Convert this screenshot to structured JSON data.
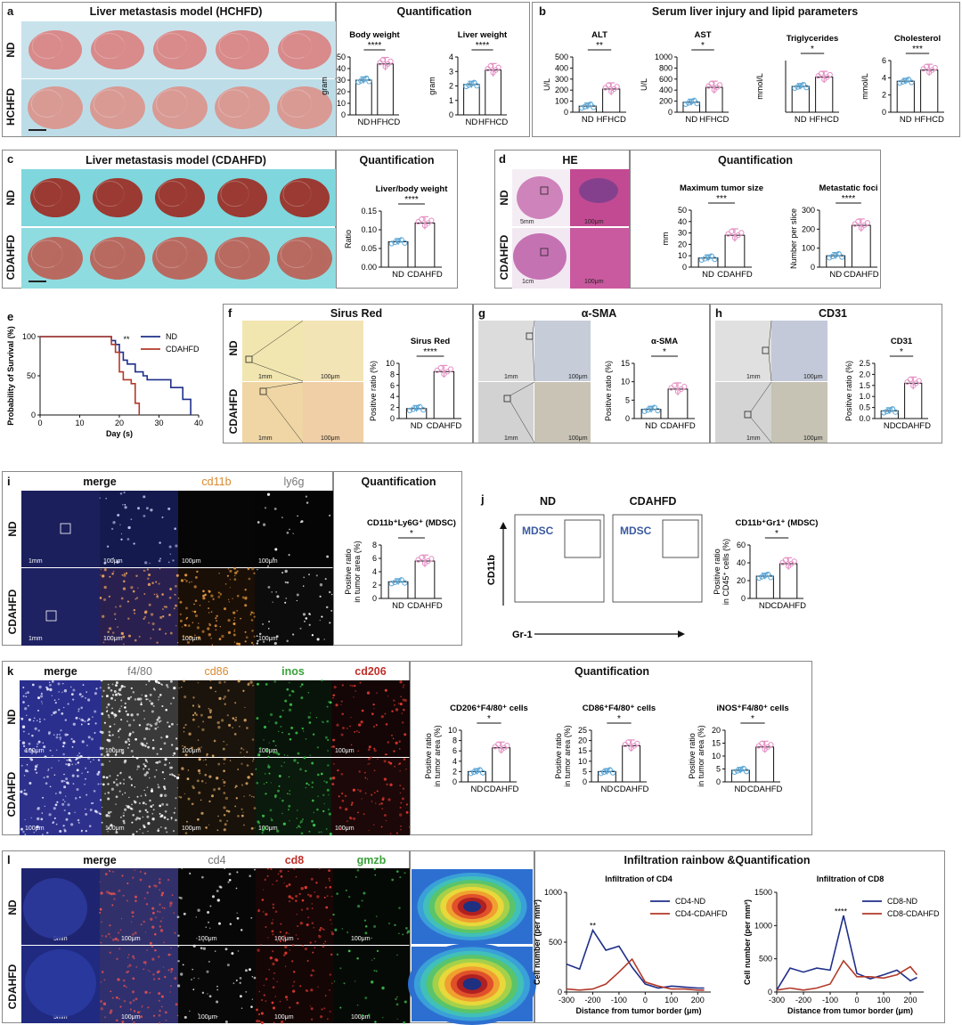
{
  "colors": {
    "nd": "#5aa6d6",
    "hf": "#e58fc4",
    "bar": "#ffffff",
    "nd_line": "#1f2f8a",
    "cd_line": "#b23a2a"
  },
  "panels": {
    "a": {
      "letter": "a",
      "title": "Liver metastasis model (HCHFD)",
      "quant": "Quantification",
      "rows": [
        "ND",
        "HCHFD"
      ]
    },
    "b": {
      "letter": "b",
      "title": "Serum liver injury and lipid parameters"
    },
    "c": {
      "letter": "c",
      "title": "Liver metastasis model (CDAHFD)",
      "quant": "Quantification",
      "rows": [
        "ND",
        "CDAHFD"
      ]
    },
    "d": {
      "letter": "d",
      "title": "HE",
      "quant": "Quantification",
      "rows": [
        "ND",
        "CDAHFD"
      ],
      "scale": [
        "5mm",
        "100μm",
        "1cm",
        "100μm"
      ]
    },
    "e": {
      "letter": "e"
    },
    "f": {
      "letter": "f",
      "title": "Sirus Red",
      "rows": [
        "ND",
        "CDAHFD"
      ],
      "scale": [
        "1mm",
        "100μm",
        "1mm",
        "100μm"
      ]
    },
    "g": {
      "letter": "g",
      "title": "α-SMA",
      "scale": [
        "1mm",
        "100μm",
        "1mm",
        "100μm"
      ]
    },
    "h": {
      "letter": "h",
      "title": "CD31",
      "scale": [
        "1mm",
        "100μm",
        "1mm",
        "100μm"
      ]
    },
    "i": {
      "letter": "i",
      "cols": [
        "merge",
        "cd11b",
        "ly6g"
      ],
      "quant": "Quantification",
      "rows": [
        "ND",
        "CDAHFD"
      ],
      "scale": [
        "1mm",
        "100μm",
        "100μm",
        "100μm"
      ]
    },
    "j": {
      "letter": "j",
      "cols": [
        "ND",
        "CDAHFD"
      ],
      "gate": "MDSC",
      "yaxis": "CD11b",
      "xaxis": "Gr-1"
    },
    "k": {
      "letter": "k",
      "cols": [
        "merge",
        "f4/80",
        "cd86",
        "inos",
        "cd206"
      ],
      "quant": "Quantification",
      "rows": [
        "ND",
        "CDAHFD"
      ],
      "scale": "100μm"
    },
    "l": {
      "letter": "l",
      "cols": [
        "merge",
        "cd4",
        "cd8",
        "gmzb"
      ],
      "quant": "Infiltration rainbow &Quantification",
      "rows": [
        "ND",
        "CDAHFD"
      ],
      "scale": [
        "5mm",
        "100μm"
      ]
    }
  },
  "chart_data": [
    {
      "id": "a1",
      "type": "bar",
      "title": "Body weight",
      "categories": [
        "ND",
        "HFHCD"
      ],
      "values": [
        30,
        44
      ],
      "ylabel": "gram",
      "ylim": [
        0,
        50
      ],
      "yticks": [
        "0",
        "10",
        "20",
        "30",
        "40",
        "50"
      ],
      "sig": "****"
    },
    {
      "id": "a2",
      "type": "bar",
      "title": "Liver weight",
      "categories": [
        "ND",
        "HFHCD"
      ],
      "values": [
        2.1,
        3.1
      ],
      "ylabel": "gram",
      "ylim": [
        0,
        4
      ],
      "yticks": [
        "0",
        "1",
        "2",
        "3",
        "4"
      ],
      "sig": "****"
    },
    {
      "id": "b1",
      "type": "bar",
      "title": "ALT",
      "categories": [
        "ND",
        "HFHCD"
      ],
      "values": [
        55,
        210
      ],
      "ylabel": "U/L",
      "ylim": [
        0,
        500
      ],
      "yticks": [
        "0",
        "100",
        "200",
        "300",
        "400",
        "500"
      ],
      "sig": "**"
    },
    {
      "id": "b2",
      "type": "bar",
      "title": "AST",
      "categories": [
        "ND",
        "HFHCD"
      ],
      "values": [
        180,
        450
      ],
      "ylabel": "U/L",
      "ylim": [
        0,
        1000
      ],
      "yticks": [
        "0",
        "200",
        "400",
        "600",
        "800",
        "1000"
      ],
      "sig": "*"
    },
    {
      "id": "b3",
      "type": "bar",
      "title": "Triglycerides",
      "categories": [
        "ND",
        "HFHCD"
      ],
      "values": [
        1.25,
        1.7
      ],
      "ylabel": "mmol/L",
      "ylim": [
        0,
        2.5
      ],
      "yticks": [],
      "sig": "*"
    },
    {
      "id": "b4",
      "type": "bar",
      "title": "Cholesterol",
      "categories": [
        "ND",
        "HFHCD"
      ],
      "values": [
        3.6,
        4.9
      ],
      "ylabel": "mmol/L",
      "ylim": [
        0,
        6
      ],
      "yticks": [
        "0",
        "2",
        "4",
        "6"
      ],
      "sig": "***"
    },
    {
      "id": "c1",
      "type": "bar",
      "title": "Liver/body weight",
      "categories": [
        "ND",
        "CDAHFD"
      ],
      "values": [
        0.068,
        0.118
      ],
      "ylabel": "Ratio",
      "ylim": [
        0,
        0.15
      ],
      "yticks": [
        "0.00",
        "0.05",
        "0.10",
        "0.15"
      ],
      "sig": "****"
    },
    {
      "id": "d1",
      "type": "bar",
      "title": "Maximum tumor size",
      "categories": [
        "ND",
        "CDAHFD"
      ],
      "values": [
        8,
        28
      ],
      "ylabel": "mm",
      "ylim": [
        0,
        50
      ],
      "yticks": [
        "0",
        "10",
        "20",
        "30",
        "40",
        "50"
      ],
      "sig": "***"
    },
    {
      "id": "d2",
      "type": "bar",
      "title": "Metastatic foci",
      "categories": [
        "ND",
        "CDAHFD"
      ],
      "values": [
        60,
        220
      ],
      "ylabel": "Number per slice",
      "ylim": [
        0,
        300
      ],
      "yticks": [
        "0",
        "100",
        "200",
        "300"
      ],
      "sig": "****"
    },
    {
      "id": "e1",
      "type": "line",
      "title": "",
      "xlabel": "Day (s)",
      "ylabel": "Probability of Survival (%)",
      "xlim": [
        0,
        40
      ],
      "ylim": [
        0,
        100
      ],
      "xticks": [
        "0",
        "10",
        "20",
        "30",
        "40"
      ],
      "yticks": [
        "0",
        "50",
        "100"
      ],
      "sig": "**",
      "series": [
        {
          "name": "ND",
          "x": [
            0,
            17,
            18,
            19,
            20,
            21,
            22,
            24,
            26,
            27,
            31,
            33,
            36,
            38,
            38
          ],
          "y": [
            100,
            100,
            95,
            90,
            80,
            70,
            65,
            55,
            50,
            45,
            45,
            35,
            20,
            20,
            0
          ]
        },
        {
          "name": "CDAHFD",
          "x": [
            0,
            17,
            18,
            19,
            20,
            21,
            23,
            24,
            25
          ],
          "y": [
            100,
            100,
            90,
            80,
            55,
            45,
            40,
            15,
            0
          ]
        }
      ]
    },
    {
      "id": "f1",
      "type": "bar",
      "title": "Sirus Red",
      "categories": [
        "ND",
        "CDAHFD"
      ],
      "values": [
        1.8,
        8.5
      ],
      "ylabel": "Positive ratio (%)",
      "ylim": [
        0,
        10
      ],
      "yticks": [
        "0",
        "2",
        "4",
        "6",
        "8",
        "10"
      ],
      "sig": "****"
    },
    {
      "id": "g1",
      "type": "bar",
      "title": "α-SMA",
      "categories": [
        "ND",
        "CDAHFD"
      ],
      "values": [
        2.5,
        8
      ],
      "ylabel": "Positive ratio (%)",
      "ylim": [
        0,
        15
      ],
      "yticks": [
        "0",
        "5",
        "10",
        "15"
      ],
      "sig": "*"
    },
    {
      "id": "h1",
      "type": "bar",
      "title": "CD31",
      "categories": [
        "ND",
        "CDAHFD"
      ],
      "values": [
        0.35,
        1.6
      ],
      "ylabel": "Positive ratio (%)",
      "ylim": [
        0,
        2.5
      ],
      "yticks": [
        "0.0",
        "0.5",
        "1.0",
        "1.5",
        "2.0",
        "2.5"
      ],
      "sig": "*"
    },
    {
      "id": "i1",
      "type": "bar",
      "title": "CD11b⁺Ly6G⁺ (MDSC)",
      "categories": [
        "ND",
        "CDAHFD"
      ],
      "values": [
        2.5,
        5.6
      ],
      "ylabel": "Positive ratio in tumor area (%)",
      "ylim": [
        0,
        8
      ],
      "yticks": [
        "0",
        "2",
        "4",
        "6",
        "8"
      ],
      "sig": "*"
    },
    {
      "id": "j1",
      "type": "bar",
      "title": "CD11b⁺Gr1⁺ (MDSC)",
      "categories": [
        "ND",
        "CDAHFD"
      ],
      "values": [
        25,
        39
      ],
      "ylabel": "Positive ratio in CD45⁺ cells (%)",
      "ylim": [
        0,
        60
      ],
      "yticks": [
        "0",
        "20",
        "40",
        "60"
      ],
      "sig": "*"
    },
    {
      "id": "k1",
      "type": "bar",
      "title": "CD206⁺F4/80⁺ cells",
      "categories": [
        "ND",
        "CDAHFD"
      ],
      "values": [
        2,
        6.6
      ],
      "ylabel": "Positive ratio in tumor area (%)",
      "ylim": [
        0,
        10
      ],
      "yticks": [
        "0",
        "2",
        "4",
        "6",
        "8",
        "10"
      ],
      "sig": "*"
    },
    {
      "id": "k2",
      "type": "bar",
      "title": "CD86⁺F4/80⁺ cells",
      "categories": [
        "ND",
        "CDAHFD"
      ],
      "values": [
        5,
        17.5
      ],
      "ylabel": "Positive ratio in tumor area (%)",
      "ylim": [
        0,
        25
      ],
      "yticks": [
        "0",
        "5",
        "10",
        "15",
        "20",
        "25"
      ],
      "sig": "*"
    },
    {
      "id": "k3",
      "type": "bar",
      "title": "iNOS⁺F4/80⁺ cells",
      "categories": [
        "ND",
        "CDAHFD"
      ],
      "values": [
        4.5,
        13.5
      ],
      "ylabel": "Positive ratio in tumor area (%)",
      "ylim": [
        0,
        20
      ],
      "yticks": [
        "0",
        "5",
        "10",
        "15",
        "20"
      ],
      "sig": "*"
    },
    {
      "id": "l1",
      "type": "line",
      "title": "Infiltration of CD4",
      "xlabel": "Distance from tumor border (μm)",
      "ylabel": "Cell number (per mm²)",
      "xlim": [
        -300,
        250
      ],
      "ylim": [
        0,
        1000
      ],
      "xticks": [
        "-300",
        "-200",
        "-100",
        "0",
        "100",
        "200"
      ],
      "yticks": [
        "0",
        "500",
        "1000"
      ],
      "sig": "**",
      "series": [
        {
          "name": "CD4-ND",
          "x": [
            -300,
            -250,
            -200,
            -150,
            -100,
            -50,
            0,
            50,
            100,
            150,
            200,
            225
          ],
          "y": [
            280,
            230,
            620,
            420,
            460,
            250,
            80,
            40,
            60,
            50,
            40,
            40
          ]
        },
        {
          "name": "CD4-CDAHFD",
          "x": [
            -300,
            -250,
            -200,
            -150,
            -100,
            -50,
            0,
            50,
            100,
            150,
            200,
            225
          ],
          "y": [
            30,
            20,
            30,
            80,
            200,
            330,
            100,
            60,
            30,
            30,
            20,
            20
          ]
        }
      ]
    },
    {
      "id": "l2",
      "type": "line",
      "title": "Infiltration of CD8",
      "xlabel": "Distance from tumor border (μm)",
      "ylabel": "Cell number (per mm²)",
      "xlim": [
        -300,
        250
      ],
      "ylim": [
        0,
        1500
      ],
      "xticks": [
        "-300",
        "-200",
        "-100",
        "0",
        "100",
        "200"
      ],
      "yticks": [
        "0",
        "500",
        "1000",
        "1500"
      ],
      "sig": "****",
      "series": [
        {
          "name": "CD8-ND",
          "x": [
            -300,
            -250,
            -200,
            -150,
            -100,
            -50,
            0,
            50,
            100,
            150,
            200,
            225
          ],
          "y": [
            30,
            360,
            300,
            360,
            330,
            1150,
            280,
            200,
            260,
            330,
            170,
            220
          ]
        },
        {
          "name": "CD8-CDAHFD",
          "x": [
            -300,
            -250,
            -200,
            -150,
            -100,
            -50,
            0,
            50,
            100,
            150,
            200,
            225
          ],
          "y": [
            30,
            60,
            30,
            60,
            120,
            470,
            230,
            230,
            210,
            260,
            380,
            260
          ]
        }
      ]
    }
  ]
}
